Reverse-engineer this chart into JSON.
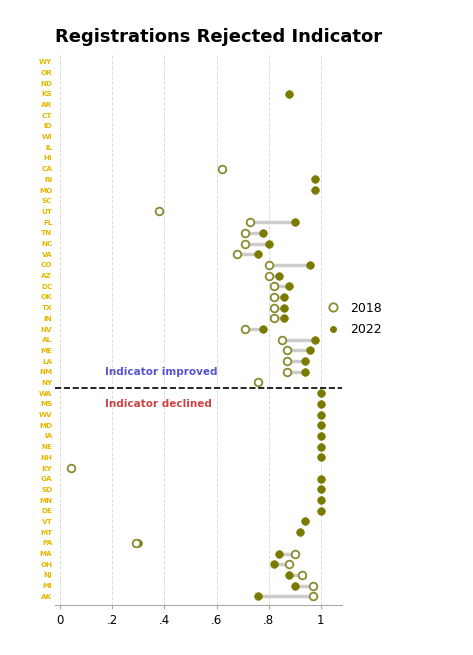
{
  "title": "Registrations Rejected Indicator",
  "states": [
    "WY",
    "OR",
    "ND",
    "KS",
    "AR",
    "CT",
    "ID",
    "WI",
    "IL",
    "HI",
    "CA",
    "RI",
    "MO",
    "SC",
    "UT",
    "FL",
    "TN",
    "NC",
    "VA",
    "CO",
    "AZ",
    "DC",
    "OK",
    "TX",
    "IN",
    "NV",
    "AL",
    "ME",
    "LA",
    "NM",
    "NY",
    "WA",
    "MS",
    "WV",
    "MD",
    "IA",
    "NE",
    "NH",
    "KY",
    "GA",
    "SD",
    "MN",
    "DE",
    "VT",
    "MT",
    "PA",
    "MA",
    "OH",
    "NJ",
    "MI",
    "AK"
  ],
  "val2018": [
    null,
    null,
    null,
    null,
    null,
    null,
    null,
    null,
    null,
    null,
    0.62,
    null,
    null,
    null,
    0.38,
    0.73,
    0.71,
    0.71,
    0.68,
    0.8,
    0.8,
    0.82,
    0.82,
    0.82,
    0.82,
    0.71,
    0.85,
    0.87,
    0.87,
    0.87,
    0.76,
    null,
    null,
    null,
    null,
    null,
    null,
    null,
    0.04,
    null,
    null,
    null,
    null,
    null,
    null,
    0.29,
    0.9,
    0.88,
    0.93,
    0.97,
    0.97
  ],
  "val2022": [
    null,
    null,
    null,
    0.88,
    null,
    null,
    null,
    null,
    null,
    null,
    null,
    0.98,
    0.98,
    null,
    null,
    0.9,
    0.78,
    0.8,
    0.76,
    0.96,
    0.84,
    0.88,
    0.86,
    0.86,
    0.86,
    0.78,
    0.98,
    0.96,
    0.94,
    0.94,
    0.76,
    1.0,
    1.0,
    1.0,
    1.0,
    1.0,
    1.0,
    1.0,
    0.04,
    1.0,
    1.0,
    1.0,
    1.0,
    0.94,
    0.92,
    0.3,
    0.84,
    0.82,
    0.88,
    0.9,
    0.76
  ],
  "divider_after_idx": 30,
  "improved_label": "Indicator improved",
  "declined_label": "Indicator declined",
  "label_color_improved": "#5555cc",
  "label_color_declined": "#cc4444",
  "state_color_improved": "#e6b800",
  "state_color_declined": "#e6b800",
  "dot2018_facecolor": "white",
  "dot2018_edgecolor": "#8a8a30",
  "dot2022_color": "#7a7a00",
  "connector_color": "#cccccc",
  "background_color": "#ffffff",
  "xlim_min": -0.02,
  "xlim_max": 1.08,
  "xticks": [
    0,
    0.2,
    0.4,
    0.6,
    0.8,
    1.0
  ],
  "xticklabels": [
    "0",
    ".2",
    ".4",
    ".6",
    ".8",
    "1"
  ],
  "legend_2018_label": "2018",
  "legend_2022_label": "2022",
  "figwidth": 4.73,
  "figheight": 6.55,
  "dpi": 100
}
